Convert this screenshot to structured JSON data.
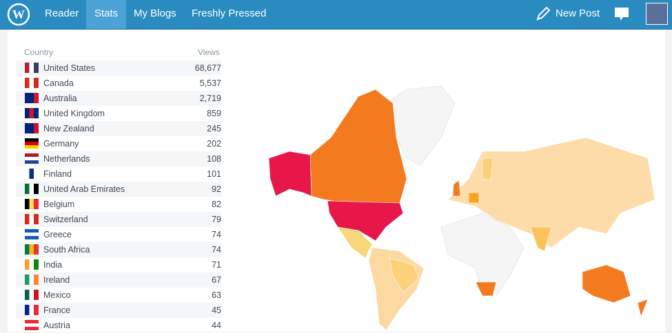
{
  "nav": {
    "items": [
      "Reader",
      "Stats",
      "My Blogs",
      "Freshly Pressed"
    ],
    "new_post": "New Post"
  },
  "table": {
    "header": [
      "Country",
      "Views"
    ],
    "rows": [
      [
        "United States",
        "68,677"
      ],
      [
        "Canada",
        "5,537"
      ],
      [
        "Australia",
        "2,719"
      ],
      [
        "United Kingdom",
        "859"
      ],
      [
        "New Zealand",
        "245"
      ],
      [
        "Germany",
        "202"
      ],
      [
        "Netherlands",
        "108"
      ],
      [
        "Finland",
        "101"
      ],
      [
        "United Arab Emirates",
        "92"
      ],
      [
        "Belgium",
        "82"
      ],
      [
        "Switzerland",
        "79"
      ],
      [
        "Greece",
        "74"
      ],
      [
        "South Africa",
        "74"
      ],
      [
        "India",
        "71"
      ],
      [
        "Ireland",
        "67"
      ],
      [
        "Mexico",
        "63"
      ],
      [
        "France",
        "45"
      ],
      [
        "Austria",
        "44"
      ]
    ]
  }
}
